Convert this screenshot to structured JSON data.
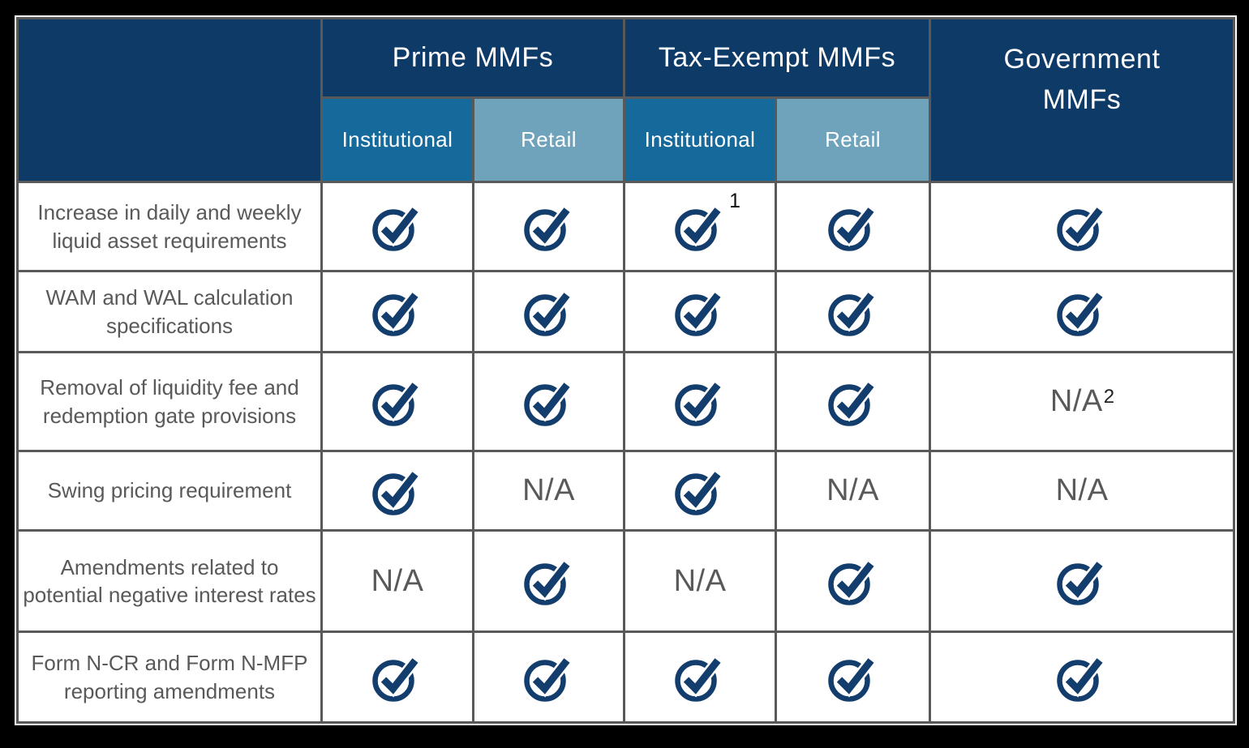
{
  "colors": {
    "navy": "#0E3A68",
    "institutional_blue": "#16699B",
    "retail_blue": "#6FA3BC",
    "border_gray": "#595959",
    "text_gray": "#595959",
    "icon_navy": "#123D6C",
    "page_background": "#000000",
    "cell_background": "#FFFFFF",
    "header_text": "#FFFFFF"
  },
  "header": {
    "groups": [
      {
        "label": "Prime MMFs",
        "sub": [
          "Institutional",
          "Retail"
        ]
      },
      {
        "label": "Tax-Exempt MMFs",
        "sub": [
          "Institutional",
          "Retail"
        ]
      },
      {
        "label": "Government MMFs",
        "sub": []
      }
    ]
  },
  "na_label": "N/A",
  "check_icon_name": "check-circle-icon",
  "rows": [
    {
      "label": "Increase in daily and weekly liquid asset requirements",
      "cells": [
        {
          "type": "check"
        },
        {
          "type": "check"
        },
        {
          "type": "check",
          "sup": "1"
        },
        {
          "type": "check"
        },
        {
          "type": "check"
        }
      ]
    },
    {
      "label": "WAM and WAL calculation specifications",
      "cells": [
        {
          "type": "check"
        },
        {
          "type": "check"
        },
        {
          "type": "check"
        },
        {
          "type": "check"
        },
        {
          "type": "check"
        }
      ]
    },
    {
      "label": "Removal of liquidity fee and redemption gate provisions",
      "cells": [
        {
          "type": "check"
        },
        {
          "type": "check"
        },
        {
          "type": "check"
        },
        {
          "type": "check"
        },
        {
          "type": "na",
          "sup": "2"
        }
      ]
    },
    {
      "label": "Swing pricing requirement",
      "cells": [
        {
          "type": "check"
        },
        {
          "type": "na"
        },
        {
          "type": "check"
        },
        {
          "type": "na"
        },
        {
          "type": "na"
        }
      ]
    },
    {
      "label": "Amendments related to potential negative interest rates",
      "cells": [
        {
          "type": "na"
        },
        {
          "type": "check"
        },
        {
          "type": "na"
        },
        {
          "type": "check"
        },
        {
          "type": "check"
        }
      ]
    },
    {
      "label": "Form N-CR and Form N-MFP reporting amendments",
      "cells": [
        {
          "type": "check"
        },
        {
          "type": "check"
        },
        {
          "type": "check"
        },
        {
          "type": "check"
        },
        {
          "type": "check"
        }
      ]
    }
  ]
}
